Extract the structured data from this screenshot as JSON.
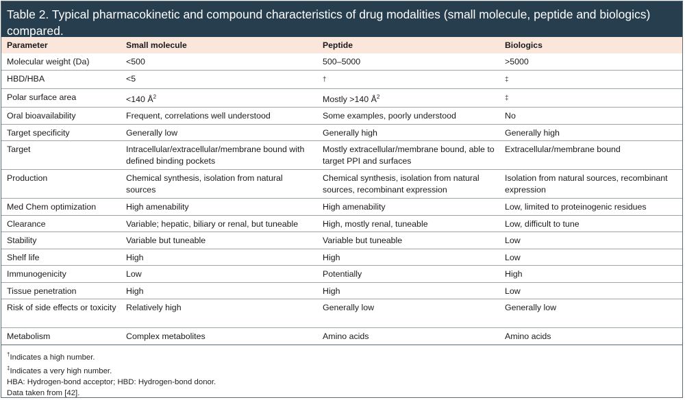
{
  "title": "Table 2.  Typical pharmacokinetic and compound characteristics of drug modalities (small molecule, peptide and biologics) compared.",
  "headers": [
    "Parameter",
    "Small molecule",
    "Peptide",
    "Biologics"
  ],
  "rows": [
    {
      "param": "Molecular weight (Da)",
      "small": "<500",
      "peptide": "500–5000",
      "bio": ">5000"
    },
    {
      "param": "HBD/HBA",
      "small": "<5",
      "peptide": "†",
      "bio": "‡"
    },
    {
      "param": "Polar surface area",
      "small": "<140 Å",
      "small_sup": "2",
      "peptide": "Mostly >140 Å",
      "peptide_sup": "2",
      "bio": "‡"
    },
    {
      "param": "Oral bioavailability",
      "small": "Frequent, correlations well understood",
      "peptide": "Some examples, poorly understood",
      "bio": "No"
    },
    {
      "param": "Target specificity",
      "small": "Generally low",
      "peptide": "Generally high",
      "bio": "Generally high"
    },
    {
      "param": "Target",
      "small": "Intracellular/extracellular/membrane bound with defined binding pockets",
      "peptide": "Mostly extracellular/membrane bound, able to target PPI and surfaces",
      "bio": "Extracellular/membrane bound"
    },
    {
      "param": "Production",
      "small": "Chemical synthesis, isolation from natural sources",
      "peptide": "Chemical synthesis, isolation from natural sources, recombinant expression",
      "bio": "Isolation from natural sources, recombinant expression"
    },
    {
      "param": "Med Chem optimization",
      "small": "High amenability",
      "peptide": "High amenability",
      "bio": "Low, limited to proteinogenic residues"
    },
    {
      "param": "Clearance",
      "small": "Variable; hepatic, biliary or renal, but tuneable",
      "peptide": "High, mostly renal, tuneable",
      "bio": "Low, difficult to tune"
    },
    {
      "param": "Stability",
      "small": "Variable but tuneable",
      "peptide": "Variable but tuneable",
      "bio": "Low"
    },
    {
      "param": "Shelf life",
      "small": "High",
      "peptide": "High",
      "bio": "Low"
    },
    {
      "param": "Immunogenicity",
      "small": "Low",
      "peptide": "Potentially",
      "bio": "High"
    },
    {
      "param": "Tissue penetration",
      "small": "High",
      "peptide": "High",
      "bio": "Low"
    },
    {
      "param": "Risk of side effects or toxicity",
      "small": "Relatively high",
      "peptide": "Generally low",
      "bio": "Generally low"
    },
    {
      "param": "Metabolism",
      "small": "Complex metabolites",
      "peptide": "Amino acids",
      "bio": "Amino acids"
    }
  ],
  "footnotes": {
    "dagger_mark": "†",
    "dagger": "Indicates a high number.",
    "ddagger_mark": "‡",
    "ddagger": "Indicates a very high number.",
    "abbrev": "HBA: Hydrogen-bond acceptor; HBD: Hydrogen-bond donor.",
    "source": "Data taken from [42]."
  }
}
